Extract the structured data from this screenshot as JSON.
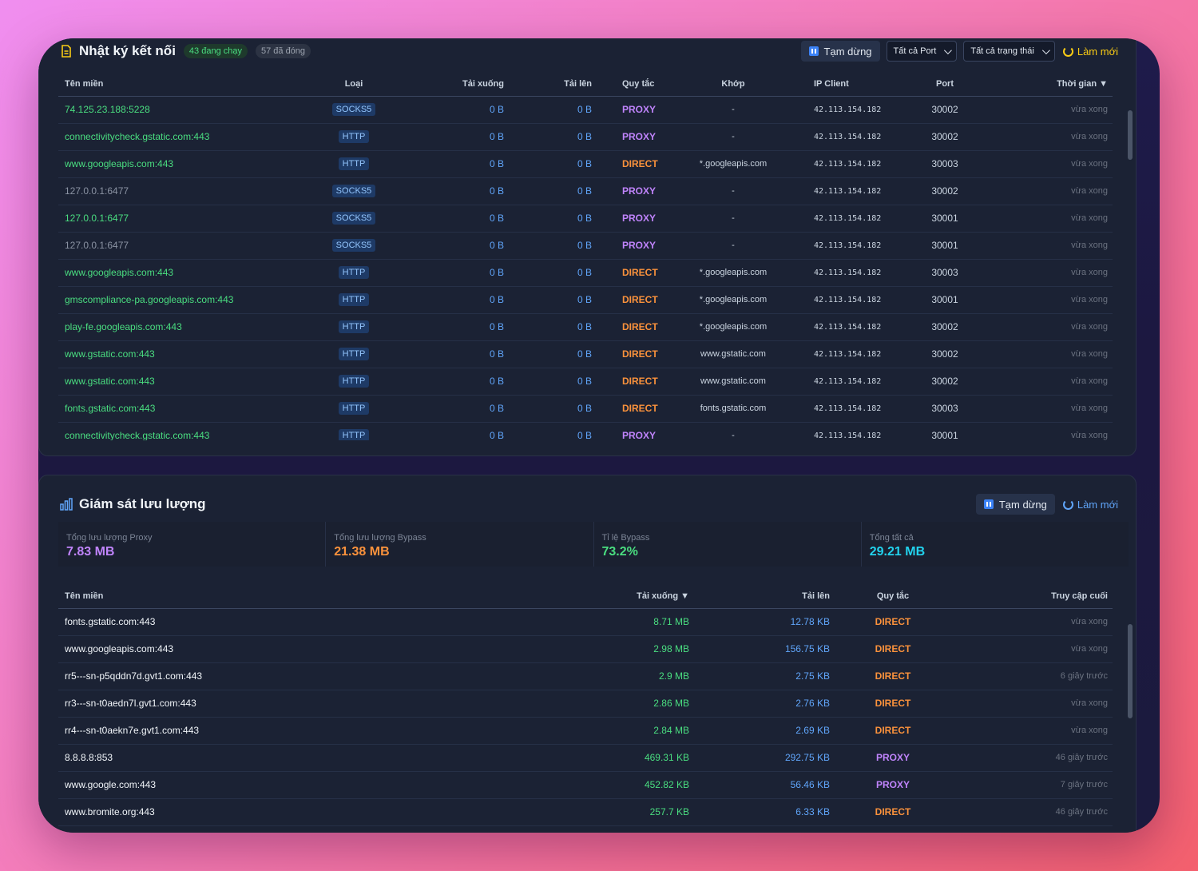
{
  "connections": {
    "title": "Nhật ký kết nối",
    "badge_running": "43 đang chạy",
    "badge_closed": "57 đã đóng",
    "pause_label": "Tạm dừng",
    "port_filter": "Tất cả Port",
    "status_filter": "Tất cả trạng thái",
    "refresh_label": "Làm mới",
    "columns": [
      "Tên miền",
      "Loại",
      "Tải xuống",
      "Tải lên",
      "Quy tắc",
      "Khớp",
      "IP Client",
      "Port",
      "Thời gian ▼"
    ],
    "rows": [
      {
        "domain": "74.125.23.188:5228",
        "active": true,
        "type": "SOCKS5",
        "down": "0 B",
        "up": "0 B",
        "rule": "PROXY",
        "match": "-",
        "ip": "42.113.154.182",
        "port": "30002",
        "time": "vừa xong"
      },
      {
        "domain": "connectivitycheck.gstatic.com:443",
        "active": true,
        "type": "HTTP",
        "down": "0 B",
        "up": "0 B",
        "rule": "PROXY",
        "match": "-",
        "ip": "42.113.154.182",
        "port": "30002",
        "time": "vừa xong"
      },
      {
        "domain": "www.googleapis.com:443",
        "active": true,
        "type": "HTTP",
        "down": "0 B",
        "up": "0 B",
        "rule": "DIRECT",
        "match": "*.googleapis.com",
        "ip": "42.113.154.182",
        "port": "30003",
        "time": "vừa xong"
      },
      {
        "domain": "127.0.0.1:6477",
        "active": false,
        "type": "SOCKS5",
        "down": "0 B",
        "up": "0 B",
        "rule": "PROXY",
        "match": "-",
        "ip": "42.113.154.182",
        "port": "30002",
        "time": "vừa xong"
      },
      {
        "domain": "127.0.0.1:6477",
        "active": true,
        "type": "SOCKS5",
        "down": "0 B",
        "up": "0 B",
        "rule": "PROXY",
        "match": "-",
        "ip": "42.113.154.182",
        "port": "30001",
        "time": "vừa xong"
      },
      {
        "domain": "127.0.0.1:6477",
        "active": false,
        "type": "SOCKS5",
        "down": "0 B",
        "up": "0 B",
        "rule": "PROXY",
        "match": "-",
        "ip": "42.113.154.182",
        "port": "30001",
        "time": "vừa xong"
      },
      {
        "domain": "www.googleapis.com:443",
        "active": true,
        "type": "HTTP",
        "down": "0 B",
        "up": "0 B",
        "rule": "DIRECT",
        "match": "*.googleapis.com",
        "ip": "42.113.154.182",
        "port": "30003",
        "time": "vừa xong"
      },
      {
        "domain": "gmscompliance-pa.googleapis.com:443",
        "active": true,
        "type": "HTTP",
        "down": "0 B",
        "up": "0 B",
        "rule": "DIRECT",
        "match": "*.googleapis.com",
        "ip": "42.113.154.182",
        "port": "30001",
        "time": "vừa xong"
      },
      {
        "domain": "play-fe.googleapis.com:443",
        "active": true,
        "type": "HTTP",
        "down": "0 B",
        "up": "0 B",
        "rule": "DIRECT",
        "match": "*.googleapis.com",
        "ip": "42.113.154.182",
        "port": "30002",
        "time": "vừa xong"
      },
      {
        "domain": "www.gstatic.com:443",
        "active": true,
        "type": "HTTP",
        "down": "0 B",
        "up": "0 B",
        "rule": "DIRECT",
        "match": "www.gstatic.com",
        "ip": "42.113.154.182",
        "port": "30002",
        "time": "vừa xong"
      },
      {
        "domain": "www.gstatic.com:443",
        "active": true,
        "type": "HTTP",
        "down": "0 B",
        "up": "0 B",
        "rule": "DIRECT",
        "match": "www.gstatic.com",
        "ip": "42.113.154.182",
        "port": "30002",
        "time": "vừa xong"
      },
      {
        "domain": "fonts.gstatic.com:443",
        "active": true,
        "type": "HTTP",
        "down": "0 B",
        "up": "0 B",
        "rule": "DIRECT",
        "match": "fonts.gstatic.com",
        "ip": "42.113.154.182",
        "port": "30003",
        "time": "vừa xong"
      },
      {
        "domain": "connectivitycheck.gstatic.com:443",
        "active": true,
        "type": "HTTP",
        "down": "0 B",
        "up": "0 B",
        "rule": "PROXY",
        "match": "-",
        "ip": "42.113.154.182",
        "port": "30001",
        "time": "vừa xong"
      }
    ]
  },
  "traffic": {
    "title": "Giám sát lưu lượng",
    "pause_label": "Tạm dừng",
    "refresh_label": "Làm mới",
    "stats": [
      {
        "label": "Tổng lưu lượng Proxy",
        "value": "7.83 MB",
        "color": "#c084fc"
      },
      {
        "label": "Tổng lưu lượng Bypass",
        "value": "21.38 MB",
        "color": "#fb923c"
      },
      {
        "label": "Tỉ lệ Bypass",
        "value": "73.2%",
        "color": "#4ade80"
      },
      {
        "label": "Tổng tất cả",
        "value": "29.21 MB",
        "color": "#22d3ee"
      }
    ],
    "columns": [
      "Tên miền",
      "Tải xuống ▼",
      "Tải lên",
      "Quy tắc",
      "Truy cập cuối"
    ],
    "rows": [
      {
        "domain": "fonts.gstatic.com:443",
        "down": "8.71 MB",
        "up": "12.78 KB",
        "rule": "DIRECT",
        "last": "vừa xong"
      },
      {
        "domain": "www.googleapis.com:443",
        "down": "2.98 MB",
        "up": "156.75 KB",
        "rule": "DIRECT",
        "last": "vừa xong"
      },
      {
        "domain": "rr5---sn-p5qddn7d.gvt1.com:443",
        "down": "2.9 MB",
        "up": "2.75 KB",
        "rule": "DIRECT",
        "last": "6 giây trước"
      },
      {
        "domain": "rr3---sn-t0aedn7l.gvt1.com:443",
        "down": "2.86 MB",
        "up": "2.76 KB",
        "rule": "DIRECT",
        "last": "vừa xong"
      },
      {
        "domain": "rr4---sn-t0aekn7e.gvt1.com:443",
        "down": "2.84 MB",
        "up": "2.69 KB",
        "rule": "DIRECT",
        "last": "vừa xong"
      },
      {
        "domain": "8.8.8.8:853",
        "down": "469.31 KB",
        "up": "292.75 KB",
        "rule": "PROXY",
        "last": "46 giây trước"
      },
      {
        "domain": "www.google.com:443",
        "down": "452.82 KB",
        "up": "56.46 KB",
        "rule": "PROXY",
        "last": "7 giây trước"
      },
      {
        "domain": "www.bromite.org:443",
        "down": "257.7 KB",
        "up": "6.33 KB",
        "rule": "DIRECT",
        "last": "46 giây trước"
      }
    ]
  }
}
